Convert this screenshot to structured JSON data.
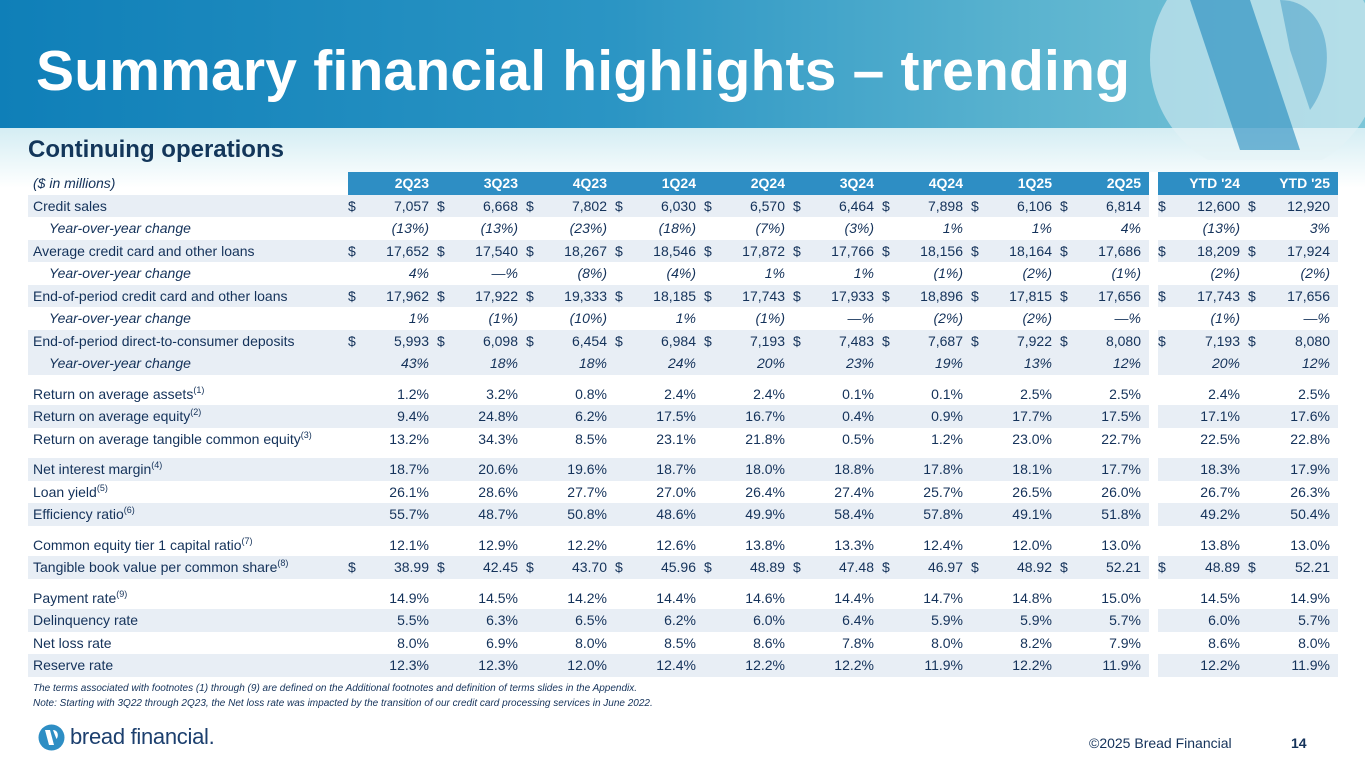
{
  "title": "Summary financial highlights – trending",
  "subtitle": "Continuing operations",
  "units_label": "($ in millions)",
  "quarters": [
    "2Q23",
    "3Q23",
    "4Q23",
    "1Q24",
    "2Q24",
    "3Q24",
    "4Q24",
    "1Q25",
    "2Q25"
  ],
  "ytd_headers": [
    "YTD '24",
    "YTD '25"
  ],
  "rows": [
    {
      "label": "Credit sales",
      "indent": false,
      "italic": false,
      "dollar": true,
      "shade": true,
      "spacer_before": false,
      "values": [
        "7,057",
        "6,668",
        "7,802",
        "6,030",
        "6,570",
        "6,464",
        "7,898",
        "6,106",
        "6,814"
      ],
      "ytd": [
        "12,600",
        "12,920"
      ]
    },
    {
      "label": "Year-over-year change",
      "indent": true,
      "italic": true,
      "dollar": false,
      "shade": false,
      "spacer_before": false,
      "values": [
        "(13%)",
        "(13%)",
        "(23%)",
        "(18%)",
        "(7%)",
        "(3%)",
        "1%",
        "1%",
        "4%"
      ],
      "ytd": [
        "(13%)",
        "3%"
      ]
    },
    {
      "label": "Average credit card and other loans",
      "indent": false,
      "italic": false,
      "dollar": true,
      "shade": true,
      "spacer_before": false,
      "values": [
        "17,652",
        "17,540",
        "18,267",
        "18,546",
        "17,872",
        "17,766",
        "18,156",
        "18,164",
        "17,686"
      ],
      "ytd": [
        "18,209",
        "17,924"
      ]
    },
    {
      "label": "Year-over-year change",
      "indent": true,
      "italic": true,
      "dollar": false,
      "shade": false,
      "spacer_before": false,
      "values": [
        "4%",
        "—%",
        "(8%)",
        "(4%)",
        "1%",
        "1%",
        "(1%)",
        "(2%)",
        "(1%)"
      ],
      "ytd": [
        "(2%)",
        "(2%)"
      ]
    },
    {
      "label": "End-of-period credit card and other loans",
      "indent": false,
      "italic": false,
      "dollar": true,
      "shade": true,
      "spacer_before": false,
      "values": [
        "17,962",
        "17,922",
        "19,333",
        "18,185",
        "17,743",
        "17,933",
        "18,896",
        "17,815",
        "17,656"
      ],
      "ytd": [
        "17,743",
        "17,656"
      ]
    },
    {
      "label": "Year-over-year change",
      "indent": true,
      "italic": true,
      "dollar": false,
      "shade": false,
      "spacer_before": false,
      "values": [
        "1%",
        "(1%)",
        "(10%)",
        "1%",
        "(1%)",
        "—%",
        "(2%)",
        "(2%)",
        "—%"
      ],
      "ytd": [
        "(1%)",
        "—%"
      ]
    },
    {
      "label": "End-of-period direct-to-consumer deposits",
      "indent": false,
      "italic": false,
      "dollar": true,
      "shade": true,
      "spacer_before": false,
      "values": [
        "5,993",
        "6,098",
        "6,454",
        "6,984",
        "7,193",
        "7,483",
        "7,687",
        "7,922",
        "8,080"
      ],
      "ytd": [
        "7,193",
        "8,080"
      ]
    },
    {
      "label": "Year-over-year change",
      "indent": true,
      "italic": true,
      "dollar": false,
      "shade": true,
      "spacer_before": false,
      "values": [
        "43%",
        "18%",
        "18%",
        "24%",
        "20%",
        "23%",
        "19%",
        "13%",
        "12%"
      ],
      "ytd": [
        "20%",
        "12%"
      ]
    },
    {
      "label": "Return on average assets",
      "sup": "(1)",
      "indent": false,
      "italic": false,
      "dollar": false,
      "shade": false,
      "spacer_before": true,
      "values": [
        "1.2%",
        "3.2%",
        "0.8%",
        "2.4%",
        "2.4%",
        "0.1%",
        "0.1%",
        "2.5%",
        "2.5%"
      ],
      "ytd": [
        "2.4%",
        "2.5%"
      ]
    },
    {
      "label": "Return on average equity",
      "sup": "(2)",
      "indent": false,
      "italic": false,
      "dollar": false,
      "shade": true,
      "spacer_before": false,
      "values": [
        "9.4%",
        "24.8%",
        "6.2%",
        "17.5%",
        "16.7%",
        "0.4%",
        "0.9%",
        "17.7%",
        "17.5%"
      ],
      "ytd": [
        "17.1%",
        "17.6%"
      ]
    },
    {
      "label": "Return on average tangible common equity",
      "sup": "(3)",
      "indent": false,
      "italic": false,
      "dollar": false,
      "shade": false,
      "spacer_before": false,
      "values": [
        "13.2%",
        "34.3%",
        "8.5%",
        "23.1%",
        "21.8%",
        "0.5%",
        "1.2%",
        "23.0%",
        "22.7%"
      ],
      "ytd": [
        "22.5%",
        "22.8%"
      ]
    },
    {
      "label": "Net interest margin",
      "sup": "(4)",
      "indent": false,
      "italic": false,
      "dollar": false,
      "shade": true,
      "spacer_before": true,
      "values": [
        "18.7%",
        "20.6%",
        "19.6%",
        "18.7%",
        "18.0%",
        "18.8%",
        "17.8%",
        "18.1%",
        "17.7%"
      ],
      "ytd": [
        "18.3%",
        "17.9%"
      ]
    },
    {
      "label": "Loan yield",
      "sup": "(5)",
      "indent": false,
      "italic": false,
      "dollar": false,
      "shade": false,
      "spacer_before": false,
      "values": [
        "26.1%",
        "28.6%",
        "27.7%",
        "27.0%",
        "26.4%",
        "27.4%",
        "25.7%",
        "26.5%",
        "26.0%"
      ],
      "ytd": [
        "26.7%",
        "26.3%"
      ]
    },
    {
      "label": "Efficiency ratio",
      "sup": "(6)",
      "indent": false,
      "italic": false,
      "dollar": false,
      "shade": true,
      "spacer_before": false,
      "values": [
        "55.7%",
        "48.7%",
        "50.8%",
        "48.6%",
        "49.9%",
        "58.4%",
        "57.8%",
        "49.1%",
        "51.8%"
      ],
      "ytd": [
        "49.2%",
        "50.4%"
      ]
    },
    {
      "label": "Common equity tier 1 capital ratio",
      "sup": "(7)",
      "indent": false,
      "italic": false,
      "dollar": false,
      "shade": false,
      "spacer_before": true,
      "values": [
        "12.1%",
        "12.9%",
        "12.2%",
        "12.6%",
        "13.8%",
        "13.3%",
        "12.4%",
        "12.0%",
        "13.0%"
      ],
      "ytd": [
        "13.8%",
        "13.0%"
      ]
    },
    {
      "label": "Tangible book value per common share",
      "sup": "(8)",
      "indent": false,
      "italic": false,
      "dollar": true,
      "shade": true,
      "spacer_before": false,
      "values": [
        "38.99",
        "42.45",
        "43.70",
        "45.96",
        "48.89",
        "47.48",
        "46.97",
        "48.92",
        "52.21"
      ],
      "ytd": [
        "48.89",
        "52.21"
      ]
    },
    {
      "label": "Payment rate",
      "sup": "(9)",
      "indent": false,
      "italic": false,
      "dollar": false,
      "shade": false,
      "spacer_before": true,
      "values": [
        "14.9%",
        "14.5%",
        "14.2%",
        "14.4%",
        "14.6%",
        "14.4%",
        "14.7%",
        "14.8%",
        "15.0%"
      ],
      "ytd": [
        "14.5%",
        "14.9%"
      ]
    },
    {
      "label": "Delinquency rate",
      "indent": false,
      "italic": false,
      "dollar": false,
      "shade": true,
      "spacer_before": false,
      "values": [
        "5.5%",
        "6.3%",
        "6.5%",
        "6.2%",
        "6.0%",
        "6.4%",
        "5.9%",
        "5.9%",
        "5.7%"
      ],
      "ytd": [
        "6.0%",
        "5.7%"
      ]
    },
    {
      "label": "Net loss rate",
      "indent": false,
      "italic": false,
      "dollar": false,
      "shade": false,
      "spacer_before": false,
      "values": [
        "8.0%",
        "6.9%",
        "8.0%",
        "8.5%",
        "8.6%",
        "7.8%",
        "8.0%",
        "8.2%",
        "7.9%"
      ],
      "ytd": [
        "8.6%",
        "8.0%"
      ]
    },
    {
      "label": "Reserve rate",
      "indent": false,
      "italic": false,
      "dollar": false,
      "shade": true,
      "spacer_before": false,
      "values": [
        "12.3%",
        "12.3%",
        "12.0%",
        "12.4%",
        "12.2%",
        "12.2%",
        "11.9%",
        "12.2%",
        "11.9%"
      ],
      "ytd": [
        "12.2%",
        "11.9%"
      ]
    }
  ],
  "dollar_sign": "$",
  "footnotes": [
    "The terms associated with footnotes (1) through (9) are defined on the Additional footnotes and definition of terms slides in the Appendix.",
    "Note: Starting with 3Q22 through 2Q23, the Net loss rate was impacted by the transition of our credit card processing services in June 2022."
  ],
  "brand_name": "bread financial.",
  "copyright": "©2025 Bread Financial",
  "page_number": "14",
  "colors": {
    "banner": "#1a86bd",
    "header_cell": "#2e8ec4",
    "row_shade": "#e8eef5",
    "text_navy": "#14325a"
  }
}
